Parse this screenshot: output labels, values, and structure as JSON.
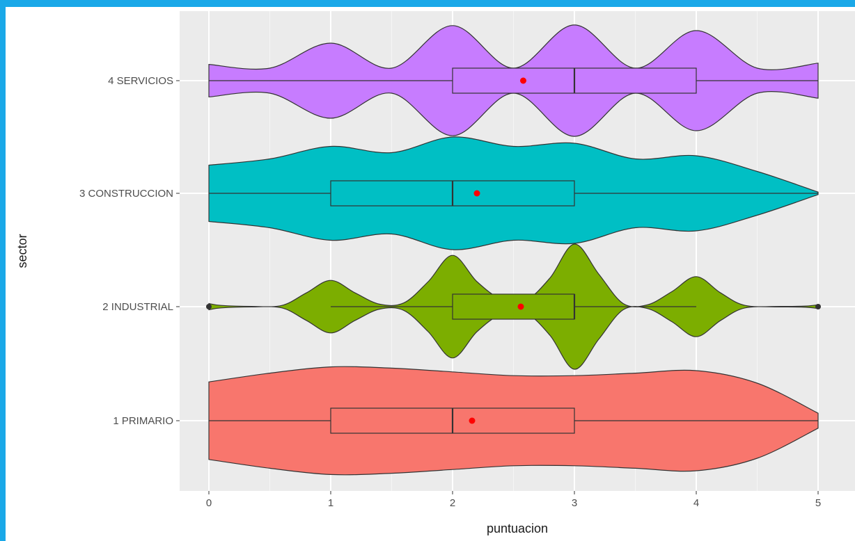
{
  "chart_data": {
    "type": "violin",
    "xlabel": "puntuacion",
    "ylabel": "sector",
    "xlim": [
      -0.25,
      5.25
    ],
    "x_ticks": [
      "0",
      "1",
      "2",
      "3",
      "4",
      "5"
    ],
    "grid": true,
    "categories": [
      "1 PRIMARIO",
      "2 INDUSTRIAL",
      "3 CONSTRUCCION",
      "4 SERVICIOS"
    ],
    "series": [
      {
        "category": "1 PRIMARIO",
        "color": "#f8766d",
        "box": {
          "min": 0,
          "q1": 1,
          "median": 2,
          "q3": 3,
          "max": 5
        },
        "mean": 2.16,
        "density": [
          [
            0,
            0.62
          ],
          [
            0.5,
            0.76
          ],
          [
            1,
            0.86
          ],
          [
            1.5,
            0.84
          ],
          [
            2,
            0.78
          ],
          [
            2.5,
            0.72
          ],
          [
            3,
            0.72
          ],
          [
            3.5,
            0.76
          ],
          [
            4,
            0.8
          ],
          [
            4.5,
            0.6
          ],
          [
            5,
            0.12
          ]
        ]
      },
      {
        "category": "2 INDUSTRIAL",
        "color": "#7cae00",
        "box": {
          "min": 1,
          "q1": 2,
          "median": 3,
          "q3": 3,
          "max": 4
        },
        "mean": 2.56,
        "outliers": [
          0,
          5
        ],
        "density": [
          [
            0,
            0.05
          ],
          [
            0.1,
            0.02
          ],
          [
            0.35,
            0.005
          ],
          [
            0.6,
            0.02
          ],
          [
            0.8,
            0.22
          ],
          [
            1,
            0.42
          ],
          [
            1.2,
            0.22
          ],
          [
            1.4,
            0.04
          ],
          [
            1.6,
            0.06
          ],
          [
            1.8,
            0.4
          ],
          [
            2,
            0.82
          ],
          [
            2.2,
            0.4
          ],
          [
            2.4,
            0.12
          ],
          [
            2.6,
            0.1
          ],
          [
            2.8,
            0.46
          ],
          [
            3,
            1.0
          ],
          [
            3.2,
            0.52
          ],
          [
            3.4,
            0.05
          ],
          [
            3.6,
            0.03
          ],
          [
            3.8,
            0.24
          ],
          [
            4,
            0.48
          ],
          [
            4.2,
            0.22
          ],
          [
            4.4,
            0.02
          ],
          [
            4.7,
            0.005
          ],
          [
            4.9,
            0.01
          ],
          [
            5,
            0.03
          ]
        ]
      },
      {
        "category": "3 CONSTRUCCION",
        "color": "#00bfc4",
        "box": {
          "min": 0,
          "q1": 1,
          "median": 2,
          "q3": 3,
          "max": 5
        },
        "mean": 2.2,
        "density": [
          [
            0,
            0.45
          ],
          [
            0.5,
            0.55
          ],
          [
            1,
            0.75
          ],
          [
            1.5,
            0.65
          ],
          [
            2,
            0.9
          ],
          [
            2.5,
            0.75
          ],
          [
            3,
            0.8
          ],
          [
            3.5,
            0.55
          ],
          [
            4,
            0.6
          ],
          [
            4.5,
            0.35
          ],
          [
            5,
            0.02
          ]
        ]
      },
      {
        "category": "4 SERVICIOS",
        "color": "#c77cff",
        "box": {
          "min": 0,
          "q1": 2,
          "median": 3,
          "q3": 4,
          "max": 5
        },
        "mean": 2.58,
        "density": [
          [
            0,
            0.26
          ],
          [
            0.5,
            0.2
          ],
          [
            1,
            0.6
          ],
          [
            1.5,
            0.2
          ],
          [
            2,
            0.88
          ],
          [
            2.5,
            0.2
          ],
          [
            3,
            0.89
          ],
          [
            3.5,
            0.2
          ],
          [
            4,
            0.8
          ],
          [
            4.5,
            0.2
          ],
          [
            5,
            0.28
          ]
        ]
      }
    ]
  }
}
